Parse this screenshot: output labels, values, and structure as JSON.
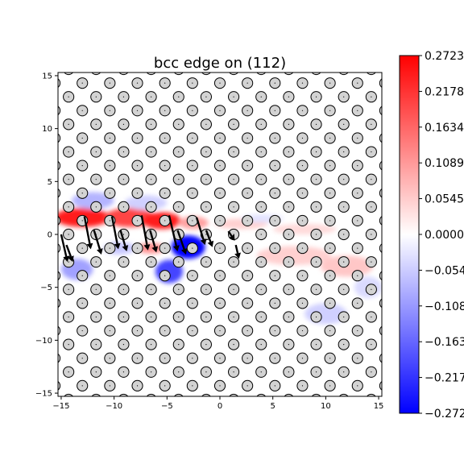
{
  "chart_data": {
    "type": "heatmap",
    "title": "bcc edge on (112)",
    "xlim": [
      -15.3,
      15.3
    ],
    "ylim": [
      -15.3,
      15.3
    ],
    "x_ticks": [
      -15,
      -10,
      -5,
      0,
      5,
      10,
      15
    ],
    "x_tick_labels": [
      "−15",
      "−10",
      "−5",
      "0",
      "5",
      "10",
      "15"
    ],
    "y_ticks": [
      -15,
      -10,
      -5,
      0,
      5,
      10,
      15
    ],
    "y_tick_labels": [
      "−15",
      "−10",
      "−5",
      "0",
      "5",
      "10",
      "15"
    ],
    "grid": false,
    "colorbar": {
      "colormap": "bwr",
      "min": -0.2723,
      "max": 0.2723,
      "ticks": [
        0.2723,
        0.2178,
        0.1634,
        0.1089,
        0.0545,
        0.0,
        -0.0545,
        -0.1089,
        -0.1634,
        -0.2178,
        -0.2723
      ],
      "tick_labels": [
        "0.2723",
        "0.2178",
        "0.1634",
        "0.1089",
        "0.0545",
        "0.0000",
        "−0.0545",
        "−0.1089",
        "−0.1634",
        "−0.2178",
        "−0.2723"
      ],
      "colors": {
        "top": "#ff0000",
        "middle": "#ffffff",
        "bottom": "#0000ff"
      }
    },
    "atom_lattice": {
      "row_spacing": 1.3,
      "x_spacing": 2.6,
      "row_shift": 1.3,
      "marker_face": "#d3d3d3",
      "marker_edge": "#000000"
    },
    "field_blobs": [
      {
        "x": -13.0,
        "y": 1.6,
        "sx": 2.6,
        "sy": 0.9,
        "value": 0.24
      },
      {
        "x": -8.5,
        "y": 1.6,
        "sx": 2.4,
        "sy": 0.9,
        "value": 0.2
      },
      {
        "x": -5.5,
        "y": 1.3,
        "sx": 1.8,
        "sy": 0.8,
        "value": 0.24
      },
      {
        "x": -2.5,
        "y": 1.1,
        "sx": 1.4,
        "sy": 0.6,
        "value": 0.1
      },
      {
        "x": 2.0,
        "y": 1.0,
        "sx": 2.5,
        "sy": 0.5,
        "value": 0.05
      },
      {
        "x": 8.0,
        "y": 0.5,
        "sx": 3.0,
        "sy": 0.5,
        "value": 0.04
      },
      {
        "x": -12.0,
        "y": 3.2,
        "sx": 2.0,
        "sy": 0.8,
        "value": -0.08
      },
      {
        "x": -7.0,
        "y": 3.0,
        "sx": 2.0,
        "sy": 0.7,
        "value": -0.05
      },
      {
        "x": -3.0,
        "y": -1.2,
        "sx": 1.6,
        "sy": 1.1,
        "value": -0.27
      },
      {
        "x": -4.8,
        "y": -3.5,
        "sx": 1.3,
        "sy": 1.1,
        "value": -0.2
      },
      {
        "x": -13.5,
        "y": -3.3,
        "sx": 1.5,
        "sy": 1.0,
        "value": -0.1
      },
      {
        "x": -9.5,
        "y": -1.3,
        "sx": 1.5,
        "sy": 0.6,
        "value": -0.06
      },
      {
        "x": -6.5,
        "y": -1.3,
        "sx": 1.3,
        "sy": 0.5,
        "value": 0.12
      },
      {
        "x": 7.0,
        "y": -2.0,
        "sx": 3.5,
        "sy": 0.9,
        "value": 0.05
      },
      {
        "x": 12.0,
        "y": -3.0,
        "sx": 2.5,
        "sy": 1.0,
        "value": 0.06
      },
      {
        "x": 10.0,
        "y": -7.5,
        "sx": 2.0,
        "sy": 1.0,
        "value": -0.05
      },
      {
        "x": 14.0,
        "y": -5.0,
        "sx": 1.3,
        "sy": 1.0,
        "value": -0.04
      },
      {
        "x": 4.0,
        "y": 1.5,
        "sx": 2.0,
        "sy": 0.4,
        "value": -0.03
      }
    ],
    "displacement_arrows": [
      {
        "x": -15.0,
        "y": 0.0,
        "dx": 0.6,
        "dy": -2.6
      },
      {
        "x": -14.5,
        "y": -1.0,
        "dx": 0.6,
        "dy": -1.6
      },
      {
        "x": -12.8,
        "y": 1.7,
        "dx": 0.6,
        "dy": -3.1
      },
      {
        "x": -11.9,
        "y": 0.4,
        "dx": 0.7,
        "dy": -2.3
      },
      {
        "x": -10.2,
        "y": 1.7,
        "dx": 0.6,
        "dy": -3.1
      },
      {
        "x": -9.4,
        "y": 0.4,
        "dx": 0.6,
        "dy": -2.0
      },
      {
        "x": -7.4,
        "y": 1.8,
        "dx": 0.6,
        "dy": -3.3
      },
      {
        "x": -6.6,
        "y": 0.4,
        "dx": 0.6,
        "dy": -2.1
      },
      {
        "x": -4.8,
        "y": 1.8,
        "dx": 0.8,
        "dy": -3.4
      },
      {
        "x": -4.0,
        "y": 0.4,
        "dx": 0.8,
        "dy": -2.3
      },
      {
        "x": -2.2,
        "y": 1.6,
        "dx": 0.8,
        "dy": -2.6
      },
      {
        "x": -1.3,
        "y": 0.4,
        "dx": 0.6,
        "dy": -1.6
      },
      {
        "x": 0.8,
        "y": 0.3,
        "dx": 0.6,
        "dy": -0.9
      },
      {
        "x": 1.5,
        "y": -1.0,
        "dx": 0.3,
        "dy": -1.3
      }
    ]
  }
}
